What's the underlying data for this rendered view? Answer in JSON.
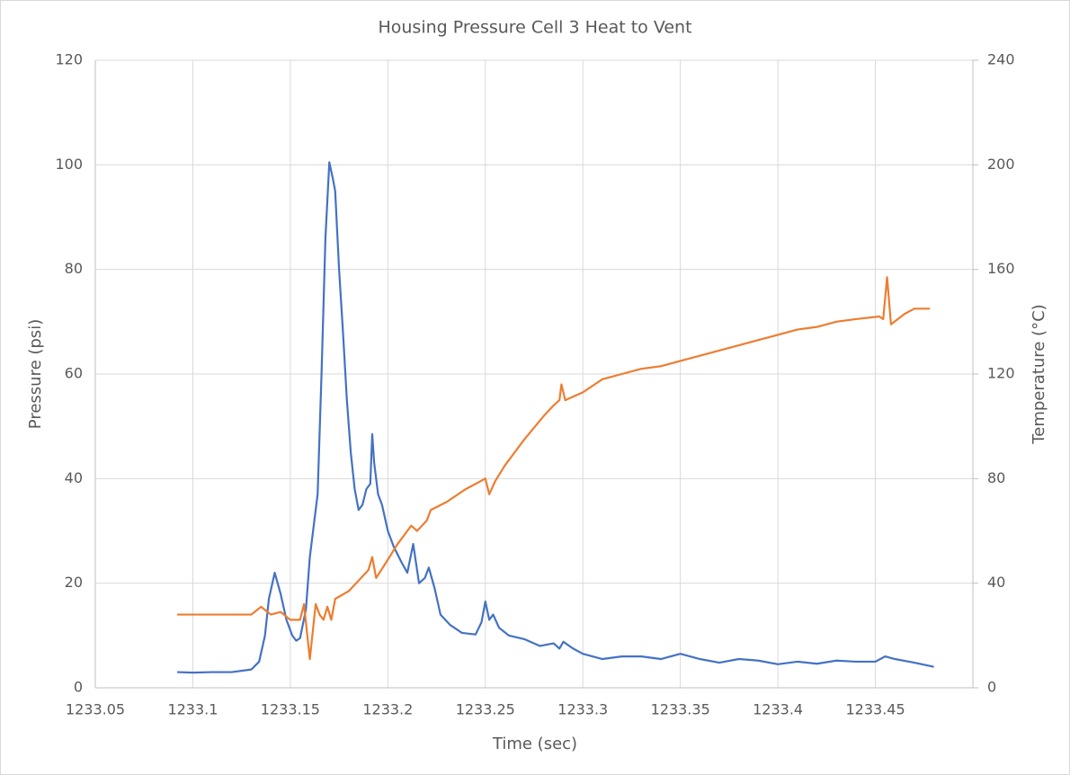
{
  "chart_data": {
    "type": "line",
    "title": "Housing Pressure Cell 3 Heat to Vent",
    "x_label": "Time (sec)",
    "y_label": "Pressure (psi)",
    "y2_label": "Temperature (°C)",
    "xlim": [
      1233.05,
      1233.5
    ],
    "xticks": [
      1233.05,
      1233.1,
      1233.15,
      1233.2,
      1233.25,
      1233.3,
      1233.35,
      1233.4,
      1233.45
    ],
    "ylim": [
      0,
      120
    ],
    "yticks": [
      0,
      20,
      40,
      60,
      80,
      100,
      120
    ],
    "y2lim": [
      0,
      240
    ],
    "y2ticks": [
      0,
      40,
      80,
      120,
      160,
      200,
      240
    ],
    "grid": true,
    "series": [
      {
        "name": "Pressure",
        "color": "#4472c4",
        "x": [
          1233.092,
          1233.1,
          1233.11,
          1233.12,
          1233.13,
          1233.134,
          1233.137,
          1233.139,
          1233.142,
          1233.145,
          1233.148,
          1233.151,
          1233.153,
          1233.155,
          1233.158,
          1233.16,
          1233.162,
          1233.164,
          1233.166,
          1233.168,
          1233.17,
          1233.172,
          1233.173,
          1233.175,
          1233.177,
          1233.179,
          1233.181,
          1233.183,
          1233.185,
          1233.187,
          1233.189,
          1233.191,
          1233.192,
          1233.193,
          1233.195,
          1233.197,
          1233.2,
          1233.203,
          1233.207,
          1233.21,
          1233.213,
          1233.216,
          1233.219,
          1233.221,
          1233.224,
          1233.227,
          1233.232,
          1233.238,
          1233.245,
          1233.248,
          1233.25,
          1233.252,
          1233.254,
          1233.257,
          1233.262,
          1233.27,
          1233.278,
          1233.285,
          1233.288,
          1233.29,
          1233.295,
          1233.3,
          1233.31,
          1233.32,
          1233.33,
          1233.34,
          1233.35,
          1233.36,
          1233.37,
          1233.38,
          1233.39,
          1233.4,
          1233.41,
          1233.42,
          1233.43,
          1233.44,
          1233.45,
          1233.455,
          1233.46,
          1233.47,
          1233.48
        ],
        "values": [
          3,
          2.9,
          3,
          3,
          3.5,
          5,
          10,
          17,
          22,
          18,
          13,
          10,
          9,
          9.5,
          15,
          25,
          31,
          37,
          60,
          86,
          100.5,
          97,
          95,
          80,
          68,
          55,
          45,
          38,
          34,
          35,
          38,
          39,
          48.5,
          43,
          37,
          35,
          30,
          27,
          24,
          22,
          27.5,
          20,
          21,
          23,
          19,
          14,
          12,
          10.5,
          10.2,
          12.5,
          16.5,
          13,
          14,
          11.5,
          10,
          9.3,
          8,
          8.5,
          7.5,
          8.8,
          7.5,
          6.5,
          5.5,
          6,
          6,
          5.5,
          6.5,
          5.5,
          4.8,
          5.5,
          5.2,
          4.5,
          5,
          4.6,
          5.2,
          5,
          5,
          6,
          5.5,
          4.8,
          4
        ]
      },
      {
        "name": "Temperature",
        "color": "#ed7d31",
        "axis": "y2",
        "x": [
          1233.092,
          1233.13,
          1233.135,
          1233.14,
          1233.145,
          1233.15,
          1233.155,
          1233.157,
          1233.16,
          1233.163,
          1233.165,
          1233.167,
          1233.169,
          1233.171,
          1233.173,
          1233.18,
          1233.19,
          1233.192,
          1233.194,
          1233.2,
          1233.205,
          1233.21,
          1233.212,
          1233.215,
          1233.22,
          1233.222,
          1233.23,
          1233.24,
          1233.25,
          1233.252,
          1233.255,
          1233.26,
          1233.27,
          1233.28,
          1233.285,
          1233.288,
          1233.289,
          1233.291,
          1233.3,
          1233.31,
          1233.32,
          1233.33,
          1233.34,
          1233.35,
          1233.36,
          1233.37,
          1233.38,
          1233.39,
          1233.4,
          1233.41,
          1233.42,
          1233.43,
          1233.44,
          1233.452,
          1233.454,
          1233.456,
          1233.458,
          1233.465,
          1233.47,
          1233.478
        ],
        "values": [
          28,
          28,
          31,
          28,
          29,
          26,
          26,
          32,
          11,
          32,
          28,
          26,
          31,
          26,
          34,
          37,
          45,
          50,
          42,
          49,
          55,
          60,
          62,
          60,
          64,
          68,
          71,
          76,
          80,
          74,
          79,
          85,
          95,
          104,
          108,
          110,
          116,
          110,
          113,
          118,
          120,
          122,
          123,
          125,
          127,
          129,
          131,
          133,
          135,
          137,
          138,
          140,
          141,
          142,
          141,
          157,
          139,
          143,
          145,
          145
        ]
      }
    ]
  }
}
